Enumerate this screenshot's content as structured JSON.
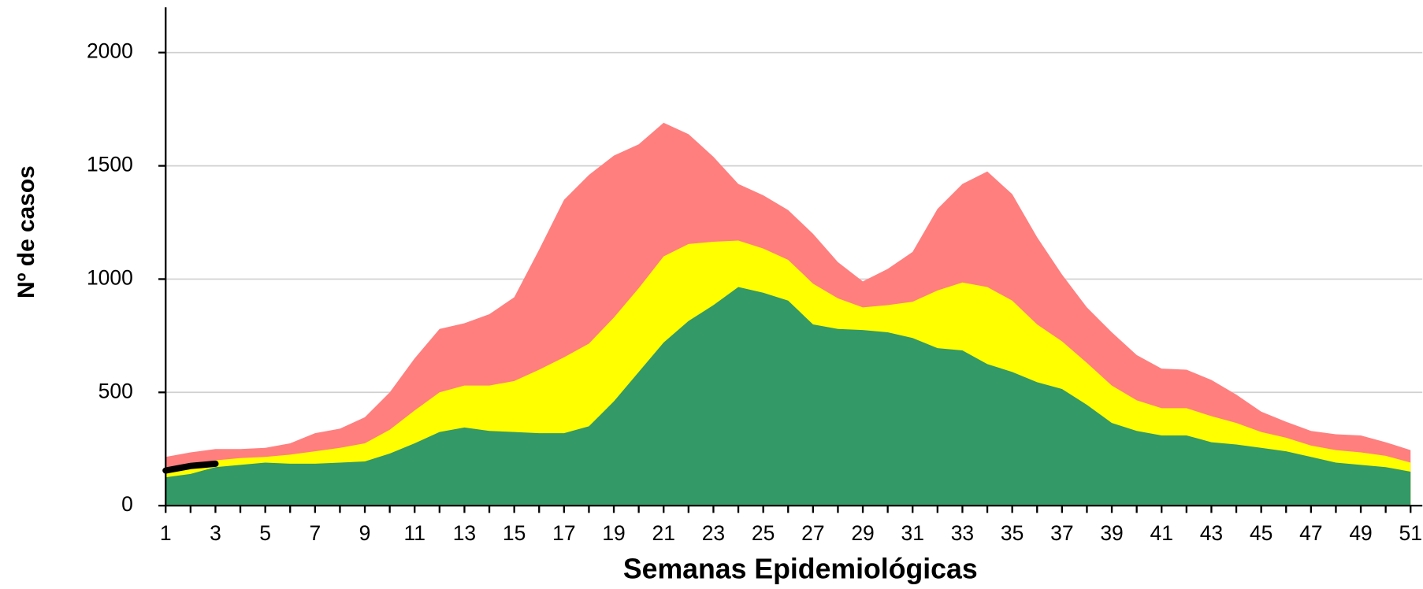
{
  "chart_data": {
    "type": "area",
    "xlabel": "Semanas Epidemiológicas",
    "ylabel": "Nº de casos",
    "categories": [
      1,
      null,
      3,
      null,
      5,
      null,
      7,
      null,
      9,
      null,
      11,
      null,
      13,
      null,
      15,
      null,
      17,
      null,
      19,
      null,
      21,
      null,
      23,
      null,
      25,
      null,
      27,
      null,
      29,
      null,
      31,
      null,
      33,
      null,
      35,
      null,
      37,
      null,
      39,
      null,
      41,
      null,
      43,
      null,
      45,
      null,
      47,
      null,
      49,
      null,
      51
    ],
    "ylim": [
      0,
      2200
    ],
    "yticks": [
      0,
      500,
      1000,
      1500,
      2000
    ],
    "grid": true,
    "series": [
      {
        "color": "#ff7f7f",
        "values": [
          215,
          235,
          250,
          250,
          255,
          275,
          320,
          340,
          390,
          500,
          650,
          780,
          805,
          845,
          920,
          1130,
          1350,
          1460,
          1545,
          1595,
          1690,
          1640,
          1540,
          1420,
          1370,
          1305,
          1200,
          1075,
          990,
          1045,
          1120,
          1310,
          1420,
          1475,
          1375,
          1185,
          1020,
          875,
          765,
          665,
          605,
          600,
          555,
          490,
          415,
          370,
          330,
          315,
          310,
          280,
          245
        ]
      },
      {
        "color": "#ffff00",
        "values": [
          165,
          180,
          200,
          210,
          215,
          225,
          240,
          255,
          275,
          335,
          420,
          500,
          530,
          530,
          550,
          600,
          655,
          715,
          830,
          960,
          1100,
          1155,
          1165,
          1170,
          1135,
          1085,
          980,
          915,
          875,
          885,
          900,
          950,
          985,
          965,
          905,
          800,
          725,
          630,
          530,
          465,
          430,
          430,
          395,
          365,
          325,
          300,
          265,
          245,
          235,
          220,
          190
        ]
      },
      {
        "color": "#339966",
        "values": [
          125,
          140,
          170,
          180,
          190,
          185,
          185,
          190,
          195,
          230,
          275,
          325,
          345,
          330,
          325,
          320,
          320,
          350,
          460,
          590,
          720,
          815,
          885,
          965,
          940,
          905,
          800,
          780,
          775,
          765,
          740,
          695,
          685,
          625,
          590,
          545,
          515,
          445,
          365,
          330,
          310,
          310,
          280,
          270,
          255,
          240,
          215,
          190,
          180,
          170,
          150
        ]
      },
      {
        "type": "line",
        "color": "#000000",
        "values": [
          155,
          175,
          185,
          null,
          null,
          null,
          null,
          null,
          null,
          null,
          null,
          null,
          null,
          null,
          null,
          null,
          null,
          null,
          null,
          null,
          null,
          null,
          null,
          null,
          null,
          null,
          null,
          null,
          null,
          null,
          null,
          null,
          null,
          null,
          null,
          null,
          null,
          null,
          null,
          null,
          null,
          null,
          null,
          null,
          null,
          null,
          null,
          null,
          null,
          null,
          null
        ]
      }
    ]
  }
}
